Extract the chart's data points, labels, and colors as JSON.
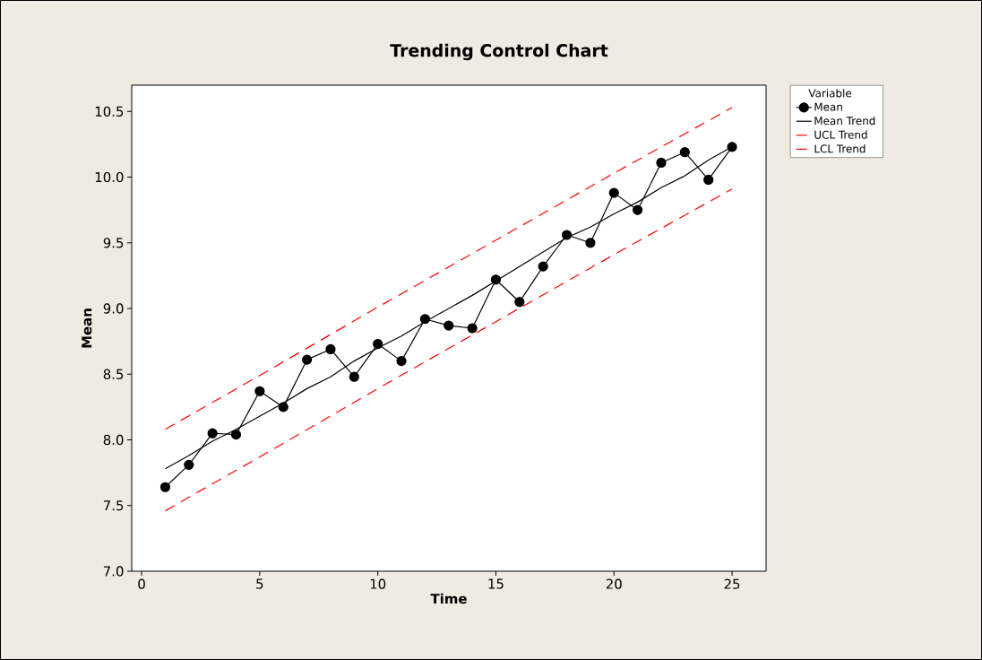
{
  "chart_data": {
    "type": "line",
    "title": "Trending Control Chart",
    "xlabel": "Time",
    "ylabel": "Mean",
    "legend_title": "Variable",
    "legend": "right",
    "x": [
      1,
      2,
      3,
      4,
      5,
      6,
      7,
      8,
      9,
      10,
      11,
      12,
      13,
      14,
      15,
      16,
      17,
      18,
      19,
      20,
      21,
      22,
      23,
      24,
      25
    ],
    "series": [
      {
        "name": "Mean",
        "color": "#000000",
        "marker": "circle",
        "line_style": "solid",
        "values": [
          7.64,
          7.81,
          8.05,
          8.04,
          8.37,
          8.25,
          8.61,
          8.69,
          8.48,
          8.73,
          8.6,
          8.92,
          8.87,
          8.85,
          9.22,
          9.05,
          9.32,
          9.56,
          9.5,
          9.88,
          9.75,
          10.11,
          10.19,
          9.98,
          10.23
        ]
      },
      {
        "name": "Mean Trend",
        "color": "#000000",
        "marker": "none",
        "line_style": "solid",
        "values": [
          7.78,
          7.88,
          7.99,
          8.08,
          8.18,
          8.28,
          8.39,
          8.48,
          8.6,
          8.7,
          8.79,
          8.9,
          9.0,
          9.1,
          9.21,
          9.32,
          9.43,
          9.54,
          9.62,
          9.72,
          9.81,
          9.92,
          10.01,
          10.13,
          10.23
        ]
      },
      {
        "name": "UCL Trend",
        "color": "#ff0000",
        "marker": "none",
        "line_style": "dashed",
        "x": [
          1,
          5,
          10,
          15,
          20,
          25
        ],
        "values": [
          8.08,
          8.49,
          9.01,
          9.52,
          10.03,
          10.53
        ]
      },
      {
        "name": "LCL Trend",
        "color": "#ff0000",
        "marker": "none",
        "line_style": "dashed",
        "x": [
          1,
          5,
          10,
          15,
          20,
          25
        ],
        "values": [
          7.46,
          7.87,
          8.39,
          8.9,
          9.41,
          9.91
        ]
      }
    ],
    "xlim": [
      -0.42,
      26.44
    ],
    "ylim": [
      7.0,
      10.7
    ],
    "xticks": [
      0,
      5,
      10,
      15,
      20,
      25
    ],
    "yticks": [
      {
        "value": 7.0,
        "label": "7.0"
      },
      {
        "value": 7.5,
        "label": "7.5"
      },
      {
        "value": 8.0,
        "label": "8.0"
      },
      {
        "value": 8.5,
        "label": "8.5"
      },
      {
        "value": 9.0,
        "label": "9.0"
      },
      {
        "value": 9.5,
        "label": "9.5"
      },
      {
        "value": 10.0,
        "label": "10.0"
      },
      {
        "value": 10.5,
        "label": "10.5"
      }
    ],
    "grid": false
  }
}
